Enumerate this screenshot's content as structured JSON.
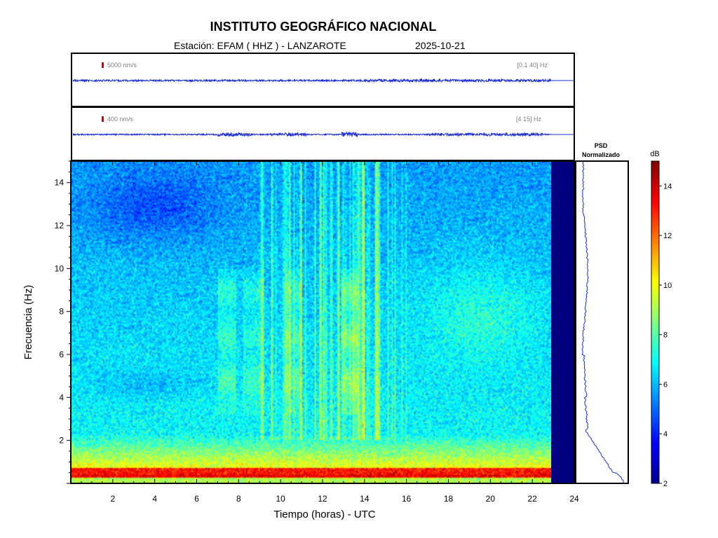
{
  "header": {
    "title": "INSTITUTO GEOGRÁFICO NACIONAL",
    "station": "Estación:  EFAM ( HHZ ) - LANZAROTE",
    "date": "2025-10-21"
  },
  "traces": [
    {
      "amplitude_label": "5000 nm/s",
      "band_label": "[0.1 40] Hz"
    },
    {
      "amplitude_label": "400 nm/s",
      "band_label": "[4 15] Hz"
    }
  ],
  "psd": {
    "title_line1": "PSD",
    "title_line2": "Normalizado"
  },
  "colorbar": {
    "unit": "dB",
    "range": [
      2,
      15
    ],
    "ticks": [
      2,
      4,
      6,
      8,
      10,
      12,
      14
    ]
  },
  "chart_data": {
    "type": "heatmap",
    "title": "INSTITUTO GEOGRÁFICO NACIONAL",
    "xlabel": "Tiempo (horas) - UTC",
    "ylabel": "Frecuencia  (Hz)",
    "xlim": [
      0,
      24
    ],
    "ylim": [
      0,
      15
    ],
    "xticks": [
      2,
      4,
      6,
      8,
      10,
      12,
      14,
      16,
      18,
      20,
      22,
      24
    ],
    "yticks": [
      2,
      4,
      6,
      8,
      10,
      12,
      14
    ],
    "data_end_hour": 22.9,
    "colorscale": "jet",
    "colors": {
      "no_data": "#000080",
      "trace": "#1a2bd6",
      "marker": "#e00000"
    }
  }
}
